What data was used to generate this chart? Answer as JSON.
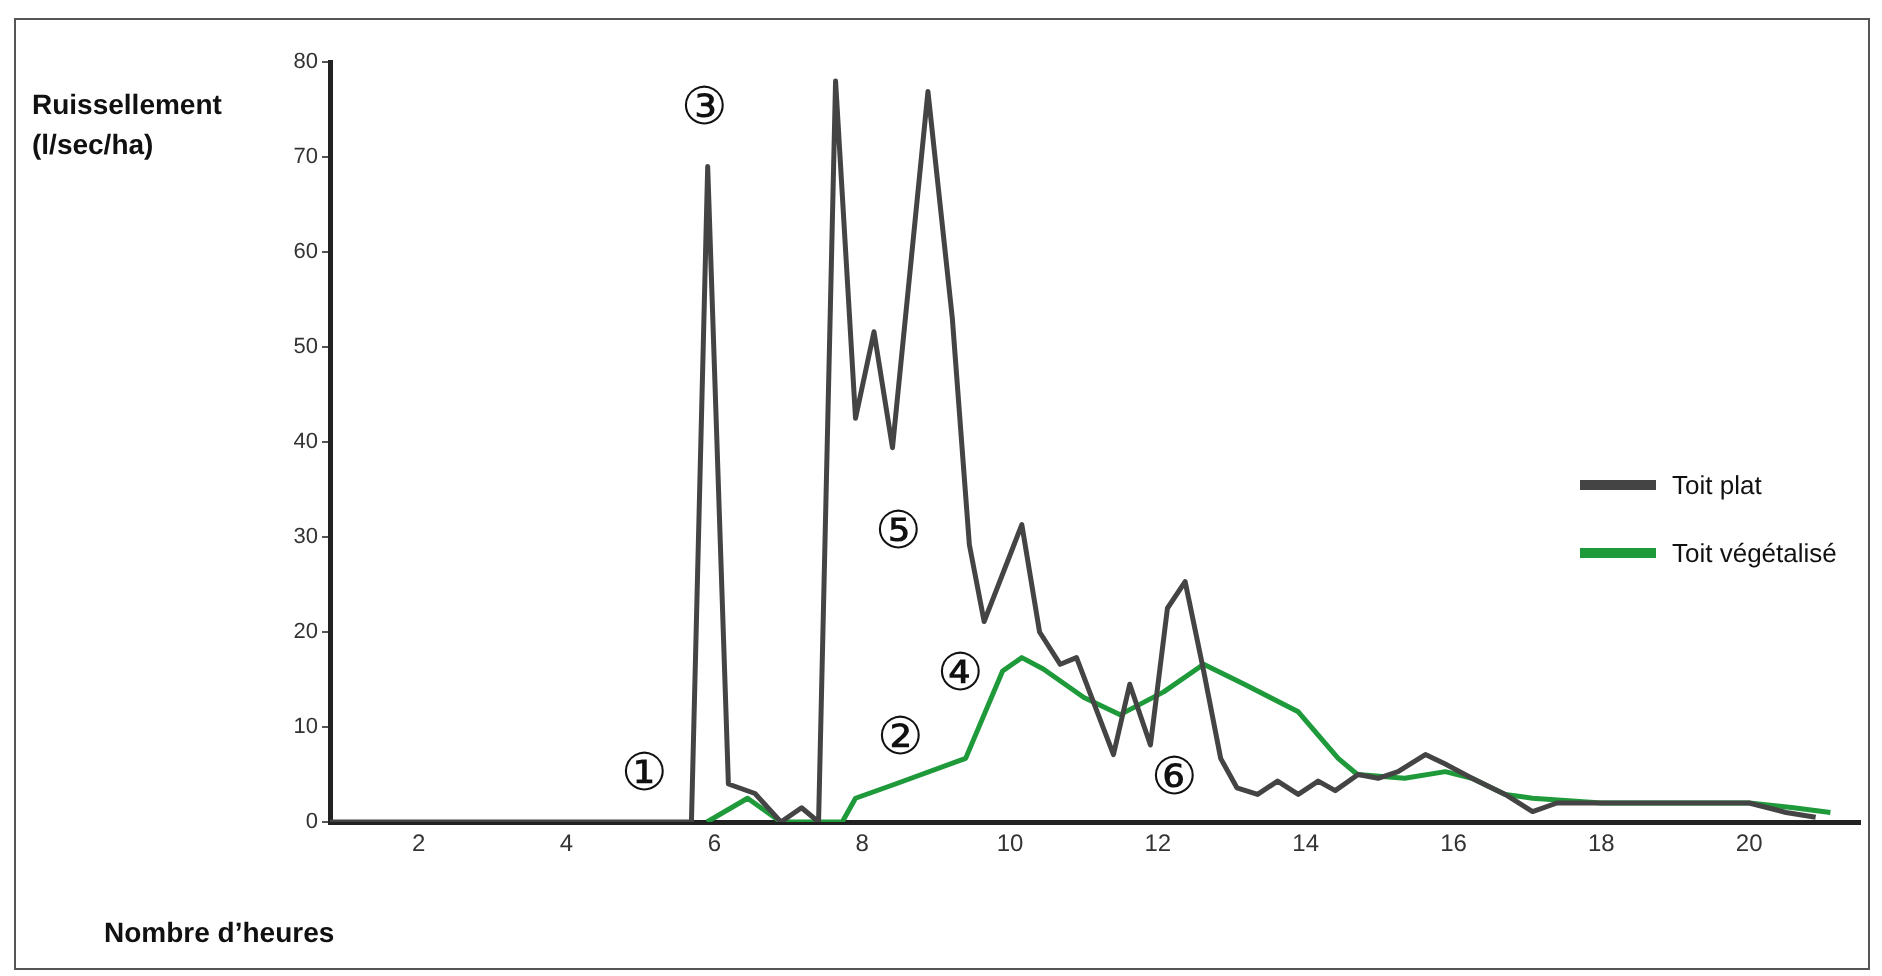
{
  "chart_data": {
    "type": "line",
    "xlabel": "Nombre d’heures",
    "ylabel": "Ruissellement (l/sec/ha)",
    "xlim": [
      0.8,
      21.5
    ],
    "xticks": [
      2,
      4,
      6,
      8,
      10,
      12,
      14,
      16,
      18,
      20
    ],
    "ylim": [
      0,
      80
    ],
    "yticks": [
      0,
      10,
      20,
      30,
      40,
      50,
      60,
      70,
      80
    ],
    "grid": false,
    "legend": "right",
    "marker": "none",
    "line_style": "solid",
    "series": [
      {
        "name": "Toit plat",
        "color": "#444444",
        "x": [
          0.8,
          5.69,
          5.91,
          6.19,
          6.55,
          6.9,
          7.18,
          7.41,
          7.64,
          7.91,
          8.16,
          8.41,
          8.89,
          9.22,
          9.45,
          9.65,
          10.16,
          10.4,
          10.68,
          10.9,
          11.4,
          11.62,
          11.9,
          12.13,
          12.37,
          12.62,
          12.85,
          13.07,
          13.35,
          13.62,
          13.9,
          14.17,
          14.4,
          14.71,
          14.98,
          15.25,
          15.62,
          15.89,
          16.25,
          16.7,
          17.07,
          17.4,
          18,
          19,
          20,
          20.5,
          20.9
        ],
        "values": [
          0,
          0,
          69,
          4,
          3,
          0,
          1.5,
          0,
          78,
          42.5,
          51.6,
          39.4,
          76.9,
          53,
          29.2,
          21.1,
          31.3,
          20,
          16.6,
          17.3,
          7.1,
          14.5,
          8.1,
          22.5,
          25.3,
          15.9,
          6.7,
          3.6,
          2.9,
          4.3,
          2.9,
          4.3,
          3.3,
          5,
          4.6,
          5.3,
          7.1,
          6.1,
          4.6,
          2.9,
          1.1,
          2,
          2,
          2,
          2,
          1,
          0.5
        ]
      },
      {
        "name": "Toit végétalisé",
        "color": "#1f9a3a",
        "x": [
          5.9,
          6.45,
          6.9,
          7.73,
          7.91,
          8.45,
          9.4,
          9.9,
          10.16,
          10.45,
          11,
          11.49,
          12.08,
          12.62,
          13.17,
          13.9,
          14.44,
          14.7,
          15.34,
          15.89,
          16.25,
          16.7,
          17.07,
          18,
          19,
          20,
          20.6,
          21.1
        ],
        "values": [
          0,
          2.5,
          0,
          0,
          2.5,
          4,
          6.7,
          15.9,
          17.3,
          16.1,
          13.1,
          11.3,
          13.7,
          16.6,
          14.5,
          11.6,
          6.7,
          5,
          4.6,
          5.3,
          4.6,
          2.9,
          2.5,
          2,
          2,
          2,
          1.5,
          1
        ]
      }
    ],
    "annotations": [
      "①",
      "②",
      "③",
      "④",
      "⑤",
      "⑥"
    ]
  }
}
